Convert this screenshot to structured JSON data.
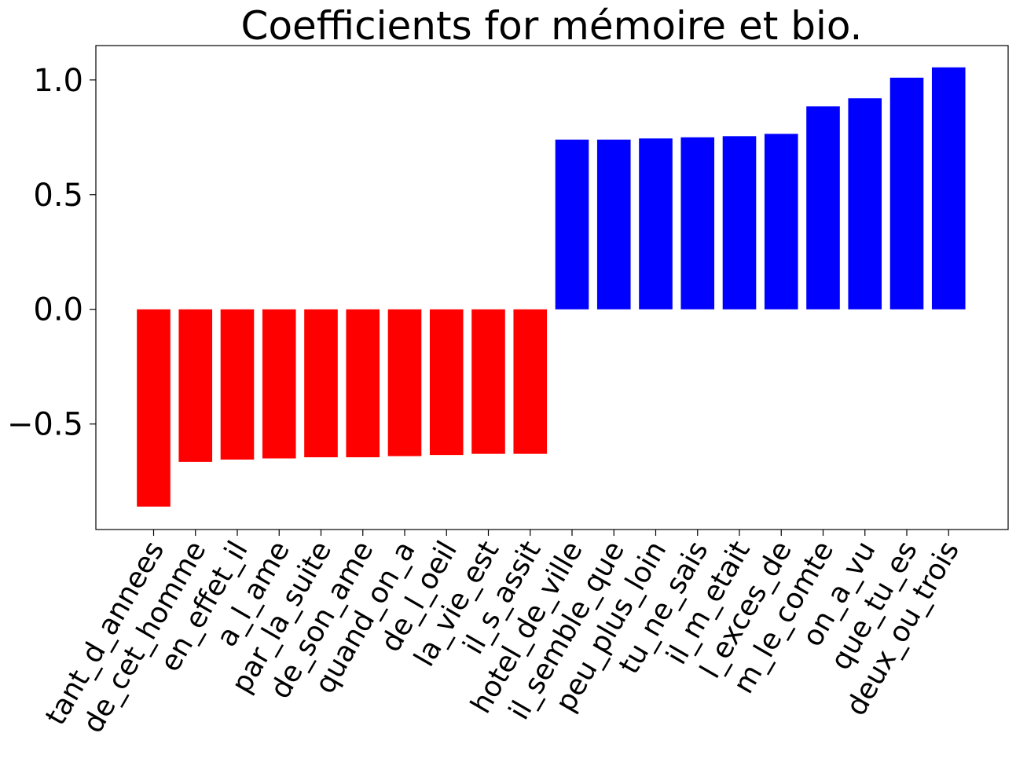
{
  "chart_data": {
    "type": "bar",
    "title": "Coefficients for mémoire et bio.",
    "xlabel": "",
    "ylabel": "",
    "ylim": [
      -0.96,
      1.15
    ],
    "yticks": [
      -0.5,
      0.0,
      0.5,
      1.0
    ],
    "ytick_labels": [
      "−0.5",
      "0.0",
      "0.5",
      "1.0"
    ],
    "grid": false,
    "legend": "none",
    "colors": {
      "negative": "#ff0000",
      "positive": "#0000ff"
    },
    "categories": [
      "tant_d_annees",
      "de_cet_homme",
      "en_effet_il",
      "a_l_ame",
      "par_la_suite",
      "de_son_ame",
      "quand_on_a",
      "de_l_oeil",
      "la_vie_est",
      "il_s_assit",
      "hotel_de_ville",
      "il_semble_que",
      "peu_plus_loin",
      "tu_ne_sais",
      "il_m_etait",
      "l_exces_de",
      "m_le_comte",
      "on_a_vu",
      "que_tu_es",
      "deux_ou_trois"
    ],
    "values": [
      -0.86,
      -0.665,
      -0.655,
      -0.65,
      -0.645,
      -0.645,
      -0.64,
      -0.635,
      -0.63,
      -0.63,
      0.74,
      0.74,
      0.745,
      0.75,
      0.755,
      0.765,
      0.885,
      0.92,
      1.01,
      1.055
    ]
  }
}
